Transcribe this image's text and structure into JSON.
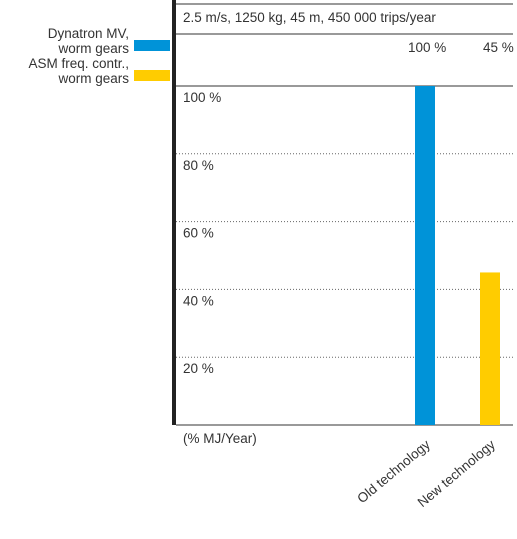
{
  "chart_data": {
    "type": "bar",
    "title": "2.5 m/s, 1250 kg, 45 m, 450 000 trips/year",
    "ylabel": "(% MJ/Year)",
    "ylim": [
      0,
      100
    ],
    "y_ticks": [
      {
        "value": 100,
        "label": "100 %"
      },
      {
        "value": 80,
        "label": "80 %"
      },
      {
        "value": 60,
        "label": "60 %"
      },
      {
        "value": 40,
        "label": "40 %"
      },
      {
        "value": 20,
        "label": "20 %"
      }
    ],
    "categories": [
      "Old technology",
      "New technology"
    ],
    "values": [
      100,
      45
    ],
    "value_labels": [
      "100 %",
      "45 %"
    ],
    "colors": [
      "#0093d8",
      "#ffcc00"
    ],
    "legend": [
      {
        "label_line1": "Dynatron MV,",
        "label_line2": "worm gears",
        "color": "#0093d8"
      },
      {
        "label_line1": "ASM freq. contr.,",
        "label_line2": "worm gears",
        "color": "#ffcc00"
      }
    ],
    "legend_position": "left",
    "grid": true
  }
}
